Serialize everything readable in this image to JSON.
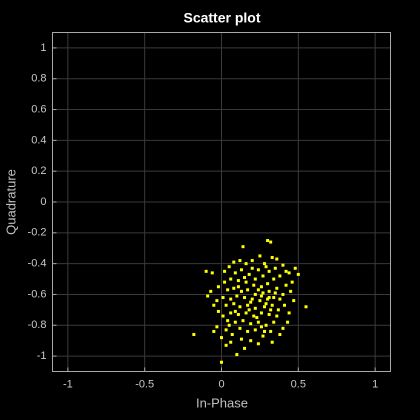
{
  "chart_data": {
    "type": "scatter",
    "title": "Scatter plot",
    "xlabel": "In-Phase",
    "ylabel": "Quadrature",
    "color": "#ffff00",
    "grid": true,
    "xlim": [
      -1.1,
      1.1
    ],
    "ylim": [
      -1.1,
      1.1
    ],
    "xticks": [
      -1,
      -0.5,
      0,
      0.5,
      1
    ],
    "yticks": [
      -1,
      -0.8,
      -0.6,
      -0.4,
      -0.2,
      0,
      0.2,
      0.4,
      0.6,
      0.8,
      1
    ],
    "x": [
      0.14,
      0.3,
      0.32,
      -0.18,
      0.0,
      0.1,
      0.55,
      0.5,
      0.48,
      -0.1,
      -0.06,
      -0.07,
      -0.09,
      -0.05,
      -0.02,
      -0.05,
      -0.03,
      0.0,
      0.03,
      0.06,
      0.03,
      0.27,
      0.33,
      0.32,
      0.4,
      0.43,
      0.44,
      0.47,
      0.45,
      0.46,
      0.42,
      0.4,
      0.36,
      0.33,
      0.25,
      0.28,
      0.24,
      0.2,
      0.16,
      0.12,
      0.08,
      0.05,
      0.02,
      0.09,
      0.13,
      0.18,
      0.22,
      0.27,
      0.31,
      0.35,
      0.38,
      0.34,
      0.3,
      0.26,
      0.21,
      0.16,
      0.11,
      0.06,
      0.02,
      -0.02,
      0.04,
      0.08,
      0.13,
      0.17,
      0.22,
      0.27,
      0.31,
      0.36,
      0.4,
      0.38,
      0.34,
      0.3,
      0.25,
      0.2,
      0.15,
      0.1,
      0.06,
      0.01,
      -0.03,
      0.03,
      0.08,
      0.12,
      0.17,
      0.22,
      0.28,
      0.33,
      0.37,
      0.41,
      0.36,
      0.31,
      0.26,
      0.21,
      0.16,
      0.11,
      0.06,
      0.01,
      0.04,
      0.09,
      0.14,
      0.19,
      0.24,
      0.29,
      0.34,
      0.38,
      0.28,
      0.22,
      0.17,
      0.12,
      0.07,
      0.13,
      0.19,
      0.24,
      0.15,
      0.09,
      0.19,
      0.24,
      0.29,
      0.35,
      0.15,
      0.2,
      0.29,
      0.11,
      0.26,
      0.18,
      0.23,
      0.32,
      0.42,
      0.05,
      0.26,
      0.31,
      0.44
    ],
    "y": [
      -0.29,
      -0.25,
      -0.26,
      -0.86,
      -1.04,
      -0.99,
      -0.68,
      -0.47,
      -0.43,
      -0.45,
      -0.46,
      -0.58,
      -0.61,
      -0.67,
      -0.71,
      -0.84,
      -0.81,
      -0.88,
      -0.83,
      -0.91,
      -0.93,
      -0.87,
      -0.91,
      -0.84,
      -0.82,
      -0.78,
      -0.72,
      -0.64,
      -0.58,
      -0.52,
      -0.45,
      -0.41,
      -0.37,
      -0.36,
      -0.35,
      -0.4,
      -0.44,
      -0.38,
      -0.4,
      -0.38,
      -0.39,
      -0.42,
      -0.45,
      -0.46,
      -0.44,
      -0.47,
      -0.5,
      -0.48,
      -0.45,
      -0.43,
      -0.48,
      -0.5,
      -0.53,
      -0.55,
      -0.54,
      -0.52,
      -0.51,
      -0.5,
      -0.52,
      -0.55,
      -0.57,
      -0.56,
      -0.58,
      -0.57,
      -0.6,
      -0.59,
      -0.58,
      -0.56,
      -0.6,
      -0.63,
      -0.62,
      -0.63,
      -0.64,
      -0.63,
      -0.62,
      -0.61,
      -0.63,
      -0.62,
      -0.64,
      -0.67,
      -0.66,
      -0.68,
      -0.67,
      -0.69,
      -0.68,
      -0.67,
      -0.7,
      -0.67,
      -0.74,
      -0.73,
      -0.72,
      -0.74,
      -0.72,
      -0.73,
      -0.72,
      -0.74,
      -0.77,
      -0.78,
      -0.77,
      -0.79,
      -0.78,
      -0.8,
      -0.78,
      -0.86,
      -0.84,
      -0.83,
      -0.84,
      -0.82,
      -0.86,
      -0.89,
      -0.9,
      -0.92,
      -0.95,
      -0.71,
      -0.65,
      -0.57,
      -0.66,
      -0.59,
      -0.49,
      -0.43,
      -0.42,
      -0.55,
      -0.61,
      -0.7,
      -0.75,
      -0.7,
      -0.54,
      -0.8,
      -0.81,
      -0.62,
      -0.46
    ]
  }
}
